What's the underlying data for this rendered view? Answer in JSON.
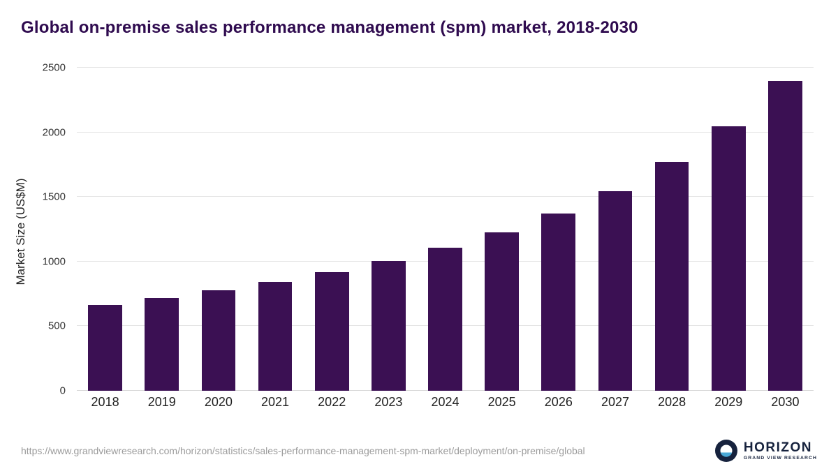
{
  "header": {
    "title": "Global on-premise sales performance management (spm) market, 2018-2030"
  },
  "chart_data": {
    "type": "bar",
    "title": "Global on-premise sales performance management (spm) market, 2018-2030",
    "categories": [
      "2018",
      "2019",
      "2020",
      "2021",
      "2022",
      "2023",
      "2024",
      "2025",
      "2026",
      "2027",
      "2028",
      "2029",
      "2030"
    ],
    "values": [
      665,
      720,
      780,
      845,
      920,
      1005,
      1105,
      1225,
      1370,
      1545,
      1770,
      2045,
      2400
    ],
    "xlabel": "",
    "ylabel": "Market Size (US$M)",
    "ylim": [
      0,
      2500
    ],
    "yticks": [
      0,
      500,
      1000,
      1500,
      2000,
      2500
    ],
    "grid": true,
    "legend_position": "none",
    "bar_color": "#3b1053",
    "title_color": "#2f0b4f",
    "gridline_color": "#e4e4e4"
  },
  "footer": {
    "source_url": "https://www.grandviewresearch.com/horizon/statistics/sales-performance-management-spm-market/deployment/on-premise/global",
    "logo": {
      "name": "HORIZON",
      "subtitle": "GRAND VIEW RESEARCH",
      "icon": "horizon-circle-icon",
      "icon_dark": "#16223d",
      "icon_light": "#4aa8d6"
    }
  }
}
